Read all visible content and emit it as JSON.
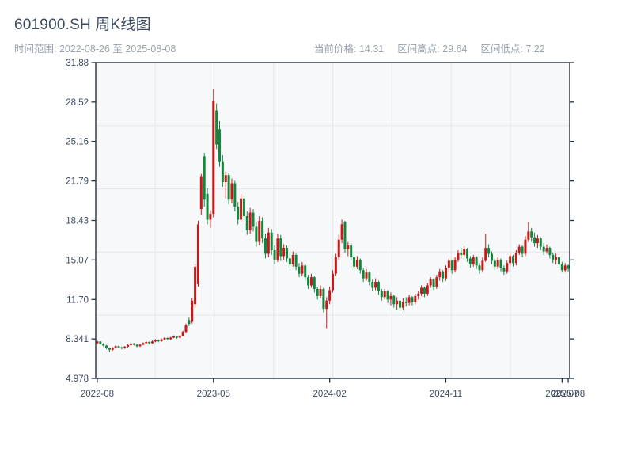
{
  "header": {
    "title": "601900.SH 周K线图",
    "subtitle": "时间范围: 2022-08-26 至 2025-08-08",
    "stats": [
      "当前价格: 14.31",
      "区间高点: 29.64",
      "区间低点: 7.22"
    ],
    "current_price": "14.31",
    "range_high": "29.64",
    "range_low": "7.22"
  },
  "chart_data": {
    "type": "candlestick",
    "symbol": "601900.SH",
    "period": "weekly",
    "date_range": [
      "2022-08-26",
      "2025-08-08"
    ],
    "ylim": [
      4.978,
      31.88
    ],
    "y_ticks": [
      "31.88",
      "28.52",
      "25.16",
      "21.79",
      "18.43",
      "15.07",
      "11.70",
      "8.341",
      "4.978"
    ],
    "x_ticks": [
      {
        "week": 0,
        "label": "2022-08"
      },
      {
        "week": 38,
        "label": "2023-05"
      },
      {
        "week": 76,
        "label": "2024-02"
      },
      {
        "week": 114,
        "label": "2024-11"
      },
      {
        "week": 152,
        "label": "2025-07"
      },
      {
        "week": 154,
        "label": "2025-08"
      }
    ],
    "colors": {
      "up": "#c81919",
      "down": "#11873c"
    },
    "grid": true,
    "legend": "none",
    "ohlc": [
      [
        7.98,
        8.18,
        7.9,
        8.12
      ],
      [
        8.12,
        8.15,
        7.85,
        7.92
      ],
      [
        7.92,
        7.98,
        7.7,
        7.78
      ],
      [
        7.78,
        7.82,
        7.48,
        7.55
      ],
      [
        7.55,
        7.6,
        7.22,
        7.42
      ],
      [
        7.42,
        7.65,
        7.35,
        7.58
      ],
      [
        7.58,
        7.8,
        7.52,
        7.72
      ],
      [
        7.72,
        7.78,
        7.55,
        7.62
      ],
      [
        7.62,
        7.68,
        7.46,
        7.55
      ],
      [
        7.55,
        7.74,
        7.5,
        7.68
      ],
      [
        7.68,
        7.88,
        7.62,
        7.82
      ],
      [
        7.82,
        8.02,
        7.76,
        7.95
      ],
      [
        7.95,
        8.0,
        7.78,
        7.85
      ],
      [
        7.85,
        7.9,
        7.64,
        7.72
      ],
      [
        7.72,
        7.92,
        7.66,
        7.85
      ],
      [
        7.85,
        8.05,
        7.8,
        7.98
      ],
      [
        7.98,
        8.15,
        7.92,
        8.08
      ],
      [
        8.08,
        8.12,
        7.9,
        7.98
      ],
      [
        7.98,
        8.2,
        7.94,
        8.12
      ],
      [
        8.12,
        8.32,
        8.06,
        8.25
      ],
      [
        8.25,
        8.3,
        8.06,
        8.15
      ],
      [
        8.15,
        8.38,
        8.1,
        8.3
      ],
      [
        8.3,
        8.5,
        8.24,
        8.42
      ],
      [
        8.42,
        8.47,
        8.22,
        8.32
      ],
      [
        8.32,
        8.52,
        8.26,
        8.45
      ],
      [
        8.45,
        8.64,
        8.4,
        8.55
      ],
      [
        8.55,
        8.6,
        8.36,
        8.45
      ],
      [
        8.45,
        8.68,
        8.4,
        8.6
      ],
      [
        8.6,
        9.05,
        8.55,
        8.95
      ],
      [
        8.95,
        9.65,
        8.85,
        9.5
      ],
      [
        9.95,
        10.15,
        9.45,
        9.62
      ],
      [
        9.8,
        11.8,
        9.65,
        11.6
      ],
      [
        11.3,
        14.75,
        11.0,
        14.5
      ],
      [
        13.0,
        18.4,
        12.8,
        18.1
      ],
      [
        19.4,
        22.4,
        18.9,
        22.2
      ],
      [
        23.9,
        24.2,
        19.6,
        20.2
      ],
      [
        20.7,
        21.2,
        18.1,
        18.5
      ],
      [
        18.5,
        19.3,
        17.8,
        19.0
      ],
      [
        19.0,
        29.64,
        18.7,
        28.6
      ],
      [
        27.8,
        28.4,
        24.5,
        24.9
      ],
      [
        26.2,
        26.9,
        23.0,
        23.4
      ],
      [
        23.4,
        24.0,
        21.3,
        21.7
      ],
      [
        21.7,
        22.6,
        20.3,
        22.3
      ],
      [
        22.3,
        22.5,
        19.8,
        20.2
      ],
      [
        20.2,
        22.0,
        19.9,
        21.6
      ],
      [
        21.6,
        21.8,
        19.2,
        19.6
      ],
      [
        19.6,
        20.0,
        18.1,
        18.5
      ],
      [
        18.5,
        20.7,
        18.3,
        20.3
      ],
      [
        20.3,
        20.5,
        18.4,
        18.8
      ],
      [
        18.8,
        19.2,
        17.2,
        17.6
      ],
      [
        17.6,
        19.5,
        17.3,
        19.1
      ],
      [
        19.1,
        19.4,
        17.5,
        17.9
      ],
      [
        17.9,
        18.3,
        16.2,
        16.6
      ],
      [
        16.6,
        18.8,
        16.3,
        18.4
      ],
      [
        18.4,
        18.7,
        16.5,
        16.9
      ],
      [
        16.9,
        17.3,
        15.2,
        15.6
      ],
      [
        15.6,
        17.8,
        15.3,
        17.4
      ],
      [
        17.4,
        17.7,
        15.5,
        15.9
      ],
      [
        15.9,
        16.3,
        14.7,
        15.1
      ],
      [
        15.1,
        17.3,
        14.9,
        16.9
      ],
      [
        16.9,
        17.2,
        15.0,
        15.4
      ],
      [
        15.4,
        16.4,
        15.1,
        16.1
      ],
      [
        16.1,
        16.3,
        14.9,
        15.2
      ],
      [
        15.2,
        15.7,
        14.4,
        14.7
      ],
      [
        14.7,
        15.8,
        14.5,
        15.5
      ],
      [
        15.5,
        15.6,
        14.2,
        14.5
      ],
      [
        14.5,
        14.8,
        13.6,
        13.9
      ],
      [
        13.9,
        14.9,
        13.7,
        14.6
      ],
      [
        14.6,
        14.7,
        13.3,
        13.6
      ],
      [
        13.6,
        13.8,
        12.6,
        12.9
      ],
      [
        12.9,
        13.9,
        12.7,
        13.6
      ],
      [
        13.6,
        13.7,
        12.3,
        12.6
      ],
      [
        12.6,
        12.8,
        11.7,
        12.0
      ],
      [
        12.0,
        12.9,
        11.8,
        12.6
      ],
      [
        12.6,
        12.7,
        10.6,
        10.9
      ],
      [
        10.9,
        11.9,
        9.25,
        11.6
      ],
      [
        11.6,
        12.8,
        11.3,
        12.5
      ],
      [
        12.5,
        14.2,
        12.3,
        13.9
      ],
      [
        13.9,
        15.6,
        13.7,
        15.3
      ],
      [
        15.3,
        17.2,
        15.1,
        16.8
      ],
      [
        16.8,
        18.5,
        16.5,
        18.1
      ],
      [
        18.3,
        18.4,
        15.7,
        16.0
      ],
      [
        16.0,
        16.6,
        15.4,
        16.3
      ],
      [
        16.3,
        16.5,
        15.0,
        15.3
      ],
      [
        15.3,
        15.5,
        14.2,
        14.5
      ],
      [
        14.5,
        15.4,
        14.3,
        15.1
      ],
      [
        15.1,
        15.2,
        13.9,
        14.2
      ],
      [
        14.2,
        14.4,
        13.2,
        13.5
      ],
      [
        13.5,
        14.3,
        13.3,
        14.0
      ],
      [
        14.0,
        14.1,
        12.9,
        13.2
      ],
      [
        13.2,
        13.4,
        12.4,
        12.7
      ],
      [
        12.7,
        13.5,
        12.5,
        13.2
      ],
      [
        13.2,
        13.3,
        12.1,
        12.4
      ],
      [
        12.4,
        12.6,
        11.6,
        11.9
      ],
      [
        11.9,
        12.6,
        11.7,
        12.4
      ],
      [
        12.4,
        12.5,
        11.4,
        11.7
      ],
      [
        11.7,
        12.3,
        11.2,
        12.0
      ],
      [
        12.0,
        12.1,
        11.0,
        11.3
      ],
      [
        11.3,
        11.9,
        10.8,
        11.6
      ],
      [
        11.6,
        11.7,
        10.5,
        11.0
      ],
      [
        11.0,
        11.8,
        10.8,
        11.5
      ],
      [
        11.5,
        11.9,
        11.1,
        11.4
      ],
      [
        11.4,
        12.1,
        11.2,
        11.9
      ],
      [
        11.9,
        12.0,
        11.2,
        11.5
      ],
      [
        11.5,
        12.2,
        11.3,
        12.0
      ],
      [
        12.0,
        12.4,
        11.7,
        12.2
      ],
      [
        12.2,
        12.9,
        12.0,
        12.7
      ],
      [
        12.7,
        12.8,
        11.9,
        12.2
      ],
      [
        12.2,
        13.1,
        12.0,
        12.9
      ],
      [
        12.9,
        13.6,
        12.7,
        13.4
      ],
      [
        13.4,
        13.5,
        12.5,
        12.8
      ],
      [
        12.8,
        13.8,
        12.6,
        13.6
      ],
      [
        13.6,
        14.3,
        13.3,
        14.1
      ],
      [
        14.1,
        14.2,
        13.2,
        13.5
      ],
      [
        13.5,
        14.6,
        13.3,
        14.4
      ],
      [
        14.4,
        15.2,
        14.1,
        15.0
      ],
      [
        15.0,
        15.1,
        13.9,
        14.2
      ],
      [
        14.2,
        15.3,
        14.0,
        15.1
      ],
      [
        15.1,
        15.9,
        14.9,
        15.7
      ],
      [
        15.7,
        16.1,
        15.2,
        15.5
      ],
      [
        15.5,
        16.2,
        15.3,
        16.0
      ],
      [
        16.0,
        16.1,
        14.9,
        15.2
      ],
      [
        15.2,
        15.4,
        14.4,
        14.7
      ],
      [
        14.7,
        15.5,
        14.5,
        15.3
      ],
      [
        15.3,
        15.4,
        14.3,
        14.6
      ],
      [
        14.6,
        14.8,
        13.9,
        14.2
      ],
      [
        14.2,
        15.3,
        14.0,
        15.0
      ],
      [
        15.0,
        17.3,
        14.9,
        16.1
      ],
      [
        16.1,
        16.4,
        15.3,
        15.6
      ],
      [
        15.6,
        15.8,
        14.7,
        15.0
      ],
      [
        15.0,
        15.2,
        14.2,
        14.5
      ],
      [
        14.5,
        15.3,
        14.3,
        15.1
      ],
      [
        15.1,
        15.2,
        14.1,
        14.4
      ],
      [
        14.4,
        14.6,
        13.8,
        14.1
      ],
      [
        14.1,
        15.0,
        13.9,
        14.8
      ],
      [
        14.8,
        15.6,
        14.6,
        15.4
      ],
      [
        15.4,
        15.5,
        14.5,
        14.8
      ],
      [
        14.8,
        15.9,
        14.6,
        15.7
      ],
      [
        15.7,
        16.4,
        15.5,
        16.2
      ],
      [
        16.2,
        16.3,
        15.3,
        15.6
      ],
      [
        15.6,
        17.1,
        15.4,
        16.8
      ],
      [
        16.8,
        18.3,
        16.6,
        17.5
      ],
      [
        17.5,
        17.8,
        16.6,
        17.0
      ],
      [
        17.0,
        17.4,
        16.2,
        16.5
      ],
      [
        16.5,
        17.2,
        16.1,
        16.9
      ],
      [
        16.9,
        17.0,
        15.9,
        16.2
      ],
      [
        16.2,
        16.5,
        15.5,
        15.8
      ],
      [
        15.8,
        16.4,
        15.6,
        16.1
      ],
      [
        16.1,
        16.2,
        15.2,
        15.5
      ],
      [
        15.5,
        15.7,
        14.8,
        15.1
      ],
      [
        15.1,
        15.6,
        14.7,
        15.3
      ],
      [
        15.3,
        15.4,
        14.4,
        14.7
      ],
      [
        14.7,
        14.9,
        14.0,
        14.2
      ],
      [
        14.2,
        14.8,
        14.0,
        14.6
      ],
      [
        14.6,
        14.7,
        14.1,
        14.31
      ]
    ]
  }
}
